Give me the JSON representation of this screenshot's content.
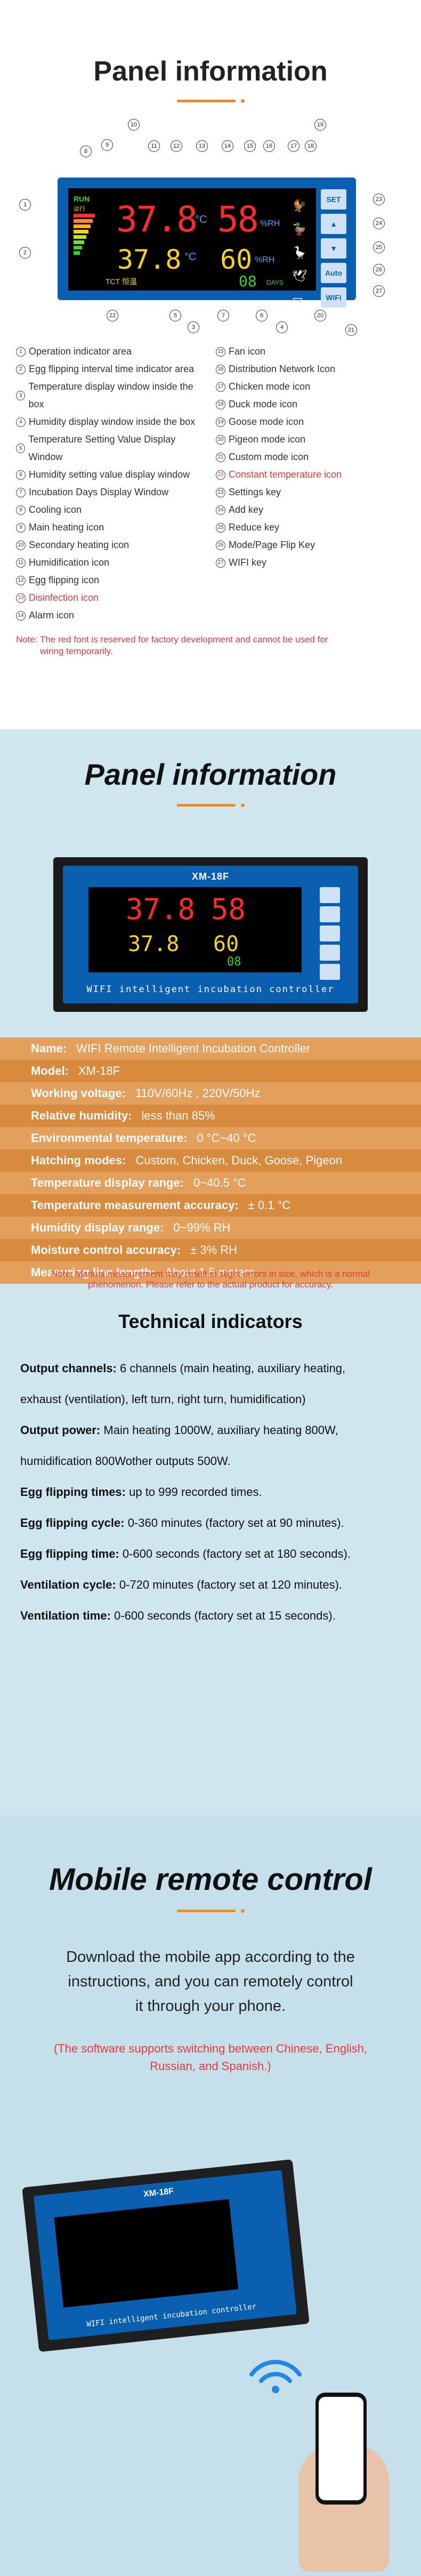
{
  "section1": {
    "title": "Panel information",
    "accent_color": "#f08a24",
    "panel_screen": {
      "run": "RUN",
      "run_cn": "运行",
      "temp_main": "37.8",
      "temp_set": "37.8",
      "hum_main": "58",
      "hum_set": "60",
      "unit_c": "°C",
      "unit_rh": "%RH",
      "days": "08",
      "days_label": "DAYS",
      "tct": "TCT 恒温"
    },
    "keys": [
      "SET",
      "▲",
      "▼",
      "Auto",
      "WiFi"
    ],
    "legend_left": [
      {
        "n": "1",
        "text": "Operation indicator area",
        "red": false
      },
      {
        "n": "2",
        "text": "Egg flipping interval time indicator area",
        "red": false
      },
      {
        "n": "3",
        "text": "Temperature display window inside the box",
        "red": false
      },
      {
        "n": "4",
        "text": "Humidity display window inside the box",
        "red": false
      },
      {
        "n": "5",
        "text": "Temperature Setting Value Display Window",
        "red": false
      },
      {
        "n": "6",
        "text": "Humidity setting value display window",
        "red": false
      },
      {
        "n": "7",
        "text": "Incubation Days Display Window",
        "red": false
      },
      {
        "n": "8",
        "text": "Cooling icon",
        "red": false
      },
      {
        "n": "9",
        "text": "Main heating icon",
        "red": false
      },
      {
        "n": "10",
        "text": "Secondary heating icon",
        "red": false
      },
      {
        "n": "11",
        "text": "Humidification icon",
        "red": false
      },
      {
        "n": "12",
        "text": "Egg flipping icon",
        "red": false
      },
      {
        "n": "13",
        "text": "Disinfection icon",
        "red": true
      },
      {
        "n": "14",
        "text": "Alarm icon",
        "red": false
      }
    ],
    "legend_right": [
      {
        "n": "15",
        "text": "Fan icon",
        "red": false
      },
      {
        "n": "16",
        "text": "Distribution Network Icon",
        "red": false
      },
      {
        "n": "17",
        "text": "Chicken mode icon",
        "red": false
      },
      {
        "n": "18",
        "text": "Duck mode icon",
        "red": false
      },
      {
        "n": "19",
        "text": "Goose mode icon",
        "red": false
      },
      {
        "n": "20",
        "text": "Pigeon mode icon",
        "red": false
      },
      {
        "n": "21",
        "text": "Custom mode icon",
        "red": false
      },
      {
        "n": "22",
        "text": "Constant temperature icon",
        "red": true
      },
      {
        "n": "23",
        "text": "Settings key",
        "red": false
      },
      {
        "n": "24",
        "text": "Add key",
        "red": false
      },
      {
        "n": "25",
        "text": "Reduce key",
        "red": false
      },
      {
        "n": "26",
        "text": "Mode/Page Flip Key",
        "red": false
      },
      {
        "n": "27",
        "text": "WIFI key",
        "red": false
      }
    ],
    "note_line1": "Note: The red font is reserved for factory development and cannot be used for",
    "note_line2": "wiring temporarily."
  },
  "section2": {
    "title": "Panel information",
    "device_model": "XM-18F",
    "device_caption": "WIFI intelligent incubation controller",
    "specs": [
      {
        "label": "Name:",
        "value": "WIFI Remote Intelligent Incubation Controller"
      },
      {
        "label": "Model:",
        "value": "XM-18F"
      },
      {
        "label": "Working voltage:",
        "value": "110V/60Hz , 220V/50Hz"
      },
      {
        "label": "Relative humidity:",
        "value": "less than 85%"
      },
      {
        "label": "Environmental temperature:",
        "value": "0 °C~40 °C"
      },
      {
        "label": "Hatching modes:",
        "value": "Custom, Chicken, Duck, Goose, Pigeon"
      },
      {
        "label": "Temperature display range:",
        "value": "0~40.5 °C"
      },
      {
        "label": "Temperature measurement accuracy:",
        "value": "± 0.1 °C"
      },
      {
        "label": "Humidity display range:",
        "value": "0~99% RH"
      },
      {
        "label": "Moisture control accuracy:",
        "value": "± 3% RH"
      },
      {
        "label": "Measuring line length:",
        "value": "About 1.5 meters"
      }
    ],
    "note_line1": "Note: Manual measurement may result in slight errors in size, which is a normal",
    "note_line2": "phenomenon. Please refer to the actual product for accuracy.",
    "tech_title": "Technical indicators",
    "tech_lines": [
      {
        "bold": "Output channels:",
        "text": " 6 channels (main heating, auxiliary heating,"
      },
      {
        "bold": "",
        "text": "exhaust (ventilation), left turn, right turn, humidification)"
      },
      {
        "bold": "Output power:",
        "text": " Main heating 1000W, auxiliary heating 800W,"
      },
      {
        "bold": "",
        "text": "humidification 800Wother outputs 500W."
      },
      {
        "bold": "Egg flipping times:",
        "text": " up to 999 recorded times."
      },
      {
        "bold": "Egg flipping cycle:",
        "text": " 0-360 minutes (factory set at 90 minutes)."
      },
      {
        "bold": "Egg flipping time:",
        "text": " 0-600 seconds (factory set at 180 seconds)."
      },
      {
        "bold": "Ventilation cycle:",
        "text": " 0-720 minutes (factory set at 120 minutes)."
      },
      {
        "bold": "Ventilation time:",
        "text": " 0-600 seconds (factory set at 15 seconds)."
      }
    ]
  },
  "section3": {
    "title": "Mobile remote control",
    "text_line1": "Download the mobile app according to the",
    "text_line2": "instructions, and you can remotely control",
    "text_line3": "it through your phone.",
    "note_line1": "(The software supports switching between Chinese, English,",
    "note_line2": "Russian, and Spanish.)",
    "device_model": "XM-18F",
    "device_caption": "WIFI intelligent incubation controller"
  }
}
